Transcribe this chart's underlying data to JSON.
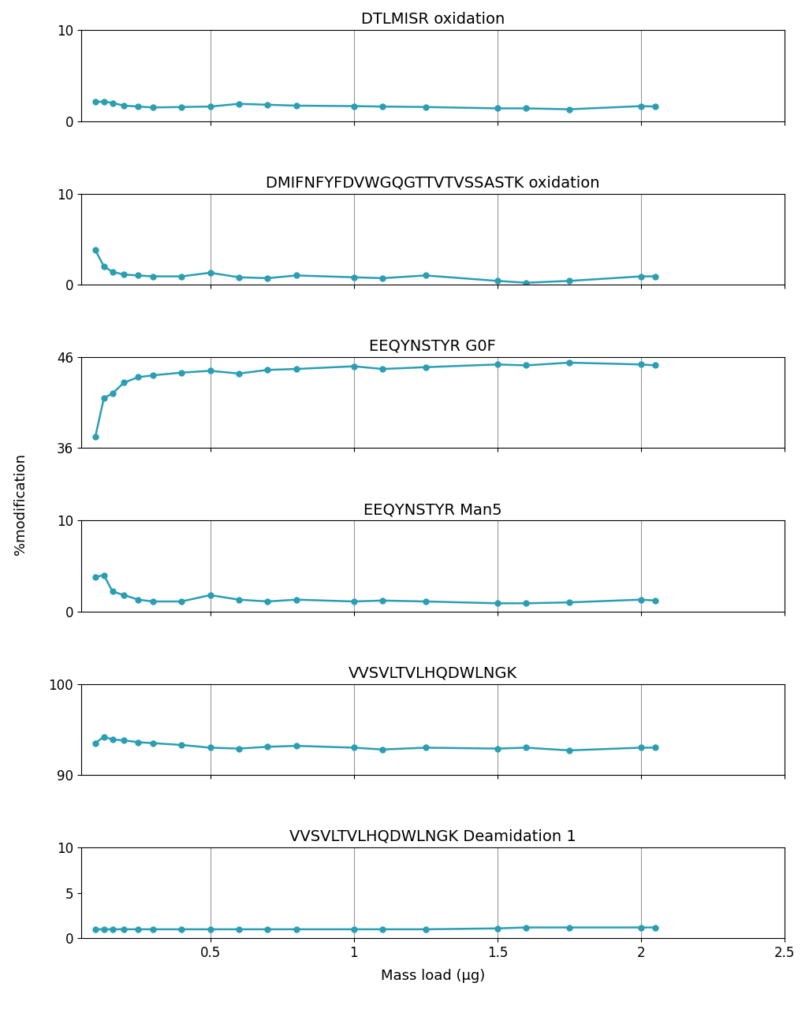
{
  "subplots": [
    {
      "title": "DTLMISR oxidation",
      "ylim": [
        0,
        10
      ],
      "yticks": [
        0,
        10
      ],
      "x": [
        0.1,
        0.13,
        0.16,
        0.2,
        0.25,
        0.3,
        0.4,
        0.5,
        0.6,
        0.7,
        0.8,
        1.0,
        1.1,
        1.25,
        1.5,
        1.6,
        1.75,
        2.0,
        2.05
      ],
      "y": [
        2.1,
        2.15,
        2.0,
        1.7,
        1.6,
        1.5,
        1.55,
        1.6,
        1.9,
        1.8,
        1.7,
        1.65,
        1.6,
        1.55,
        1.4,
        1.4,
        1.3,
        1.65,
        1.6
      ]
    },
    {
      "title": "DMIFNFYFDVWGQGTTVTVSSASTK oxidation",
      "ylim": [
        0,
        10
      ],
      "yticks": [
        0,
        10
      ],
      "x": [
        0.1,
        0.13,
        0.16,
        0.2,
        0.25,
        0.3,
        0.4,
        0.5,
        0.6,
        0.7,
        0.8,
        1.0,
        1.1,
        1.25,
        1.5,
        1.6,
        1.75,
        2.0,
        2.05
      ],
      "y": [
        3.8,
        2.0,
        1.4,
        1.1,
        1.0,
        0.9,
        0.9,
        1.3,
        0.8,
        0.7,
        1.0,
        0.8,
        0.7,
        1.0,
        0.4,
        0.2,
        0.4,
        0.9,
        0.9
      ]
    },
    {
      "title": "EEQYNSTYR G0F",
      "ylim": [
        36,
        46
      ],
      "yticks": [
        36,
        46
      ],
      "x": [
        0.1,
        0.13,
        0.16,
        0.2,
        0.25,
        0.3,
        0.4,
        0.5,
        0.6,
        0.7,
        0.8,
        1.0,
        1.1,
        1.25,
        1.5,
        1.6,
        1.75,
        2.0,
        2.05
      ],
      "y": [
        37.2,
        41.5,
        42.0,
        43.2,
        43.8,
        44.0,
        44.3,
        44.5,
        44.2,
        44.6,
        44.7,
        45.0,
        44.7,
        44.9,
        45.2,
        45.1,
        45.4,
        45.2,
        45.1
      ]
    },
    {
      "title": "EEQYNSTYR Man5",
      "ylim": [
        0,
        10
      ],
      "yticks": [
        0,
        10
      ],
      "x": [
        0.1,
        0.13,
        0.16,
        0.2,
        0.25,
        0.3,
        0.4,
        0.5,
        0.6,
        0.7,
        0.8,
        1.0,
        1.1,
        1.25,
        1.5,
        1.6,
        1.75,
        2.0,
        2.05
      ],
      "y": [
        3.8,
        4.0,
        2.2,
        1.8,
        1.3,
        1.1,
        1.1,
        1.8,
        1.3,
        1.1,
        1.3,
        1.1,
        1.2,
        1.1,
        0.9,
        0.9,
        1.0,
        1.3,
        1.2
      ]
    },
    {
      "title": "VVSVLTVLHQDWLNGK",
      "ylim": [
        90,
        100
      ],
      "yticks": [
        90,
        100
      ],
      "x": [
        0.1,
        0.13,
        0.16,
        0.2,
        0.25,
        0.3,
        0.4,
        0.5,
        0.6,
        0.7,
        0.8,
        1.0,
        1.1,
        1.25,
        1.5,
        1.6,
        1.75,
        2.0,
        2.05
      ],
      "y": [
        93.5,
        94.2,
        93.9,
        93.8,
        93.6,
        93.5,
        93.3,
        93.0,
        92.9,
        93.1,
        93.2,
        93.0,
        92.8,
        93.0,
        92.9,
        93.0,
        92.7,
        93.0,
        93.0
      ]
    },
    {
      "title": "VVSVLTVLHQDWLNGK Deamidation 1",
      "ylim": [
        0,
        10
      ],
      "yticks": [
        0,
        5,
        10
      ],
      "x": [
        0.1,
        0.13,
        0.16,
        0.2,
        0.25,
        0.3,
        0.4,
        0.5,
        0.6,
        0.7,
        0.8,
        1.0,
        1.1,
        1.25,
        1.5,
        1.6,
        1.75,
        2.0,
        2.05
      ],
      "y": [
        1.0,
        1.0,
        1.0,
        1.0,
        1.0,
        1.0,
        1.0,
        1.0,
        1.0,
        1.0,
        1.0,
        1.0,
        1.0,
        1.0,
        1.1,
        1.2,
        1.2,
        1.2,
        1.2
      ]
    }
  ],
  "xlabel": "Mass load (μg)",
  "ylabel": "%modification",
  "line_color": "#2b9eb3",
  "marker": "o",
  "marker_size": 5,
  "line_width": 1.8,
  "xlim": [
    0.05,
    2.5
  ],
  "xticks": [
    0.5,
    1.0,
    1.5,
    2.0,
    2.5
  ],
  "xticklabels": [
    "0.5",
    "1",
    "1.5",
    "2",
    "2.5"
  ],
  "grid_color": "#999999",
  "title_fontsize": 14,
  "tick_fontsize": 12,
  "label_fontsize": 13,
  "vline_positions": [
    0.5,
    1.0,
    1.5,
    2.0
  ]
}
